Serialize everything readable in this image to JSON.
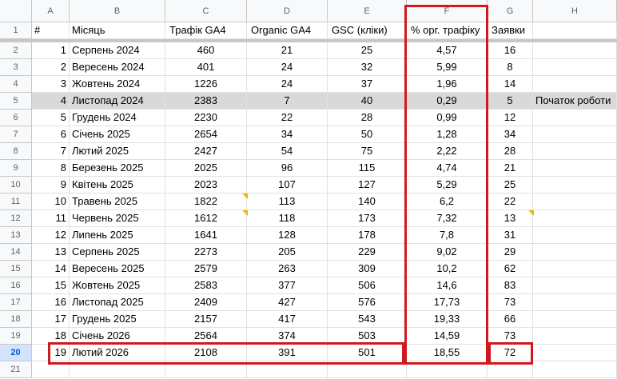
{
  "columns": [
    "A",
    "B",
    "C",
    "D",
    "E",
    "F",
    "G",
    "H"
  ],
  "row_numbers": [
    "1",
    "2",
    "3",
    "4",
    "5",
    "6",
    "7",
    "8",
    "9",
    "10",
    "11",
    "12",
    "13",
    "14",
    "15",
    "16",
    "17",
    "18",
    "19",
    "20",
    "21"
  ],
  "rows": [
    [
      "#",
      "Місяць",
      "Трафік GA4",
      "Organic GA4",
      "GSC (кліки)",
      "% орг. трафіку",
      "Заявки"
    ],
    [
      "1",
      "Серпень 2024",
      "460",
      "21",
      "25",
      "4,57",
      "16"
    ],
    [
      "2",
      "Вересень 2024",
      "401",
      "24",
      "32",
      "5,99",
      "8"
    ],
    [
      "3",
      "Жовтень 2024",
      "1226",
      "24",
      "37",
      "1,96",
      "14"
    ],
    [
      "4",
      "Листопад 2024",
      "2383",
      "7",
      "40",
      "0,29",
      "5",
      "Початок роботи"
    ],
    [
      "5",
      "Грудень 2024",
      "2230",
      "22",
      "28",
      "0,99",
      "12"
    ],
    [
      "6",
      "Січень 2025",
      "2654",
      "34",
      "50",
      "1,28",
      "34"
    ],
    [
      "7",
      "Лютий 2025",
      "2427",
      "54",
      "75",
      "2,22",
      "28"
    ],
    [
      "8",
      "Березень 2025",
      "2025",
      "96",
      "115",
      "4,74",
      "21"
    ],
    [
      "9",
      "Квітень 2025",
      "2023",
      "107",
      "127",
      "5,29",
      "25"
    ],
    [
      "10",
      "Травень 2025",
      "1822",
      "113",
      "140",
      "6,2",
      "22"
    ],
    [
      "11",
      "Червень 2025",
      "1612",
      "118",
      "173",
      "7,32",
      "13"
    ],
    [
      "12",
      "Липень 2025",
      "1641",
      "128",
      "178",
      "7,8",
      "31"
    ],
    [
      "13",
      "Серпень 2025",
      "2273",
      "205",
      "229",
      "9,02",
      "29"
    ],
    [
      "14",
      "Вересень 2025",
      "2579",
      "263",
      "309",
      "10,2",
      "62"
    ],
    [
      "15",
      "Жовтень 2025",
      "2583",
      "377",
      "506",
      "14,6",
      "83"
    ],
    [
      "16",
      "Листопад 2025",
      "2409",
      "427",
      "576",
      "17,73",
      "73"
    ],
    [
      "17",
      "Грудень 2025",
      "2157",
      "417",
      "543",
      "19,33",
      "66"
    ],
    [
      "18",
      "Січень 2026",
      "2564",
      "374",
      "503",
      "14,59",
      "73"
    ],
    [
      "19",
      "Лютий 2026",
      "2108",
      "391",
      "501",
      "18,55",
      "72"
    ],
    []
  ]
}
